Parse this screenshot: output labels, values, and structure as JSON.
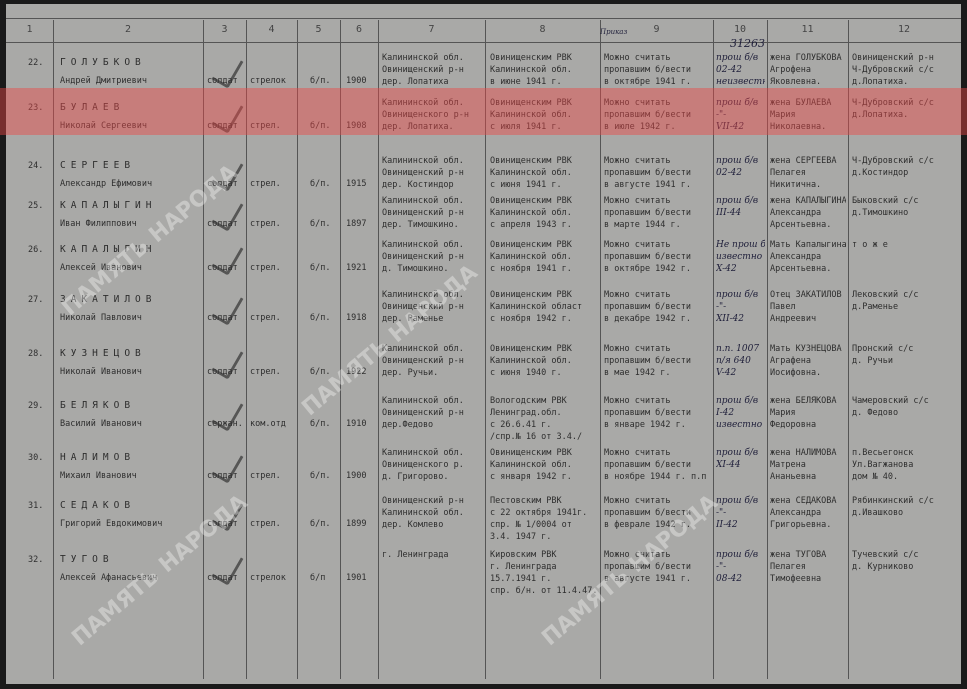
{
  "column_headers": [
    "1",
    "2",
    "3",
    "4",
    "5",
    "6",
    "7",
    "8",
    "9",
    "10",
    "11",
    "12"
  ],
  "top_annotation": "Приказ",
  "order_number": "31263",
  "highlight_color": "#eb4646",
  "watermark": "ПАМЯТЬ НАРОДА",
  "rows": [
    {
      "num": "22.",
      "surname": "ГОЛУБКОВ",
      "given": "Андрей Дмитриевич",
      "rank": "солдат",
      "position": "стрелок",
      "party": "б/п.",
      "year": "1900",
      "birthplace": [
        "Калининской обл.",
        "Овинищенский р-н",
        "дер. Лопатиха"
      ],
      "rvk": [
        "Овинищенским РВК",
        "Калининской обл.",
        "в июне 1941 г."
      ],
      "fate": [
        "Можно считать",
        "пропавшим б/вести",
        "в октябре 1941 г."
      ],
      "note": [
        "прош б/в",
        "02-42",
        "неизвестно"
      ],
      "relative": [
        "жена ГОЛУБКОВА",
        "Агрофена",
        "Яковлевна."
      ],
      "address": [
        "Овинищенский р-н",
        "Ч-Дубровский с/с",
        "д.Лопатиха."
      ]
    },
    {
      "num": "23.",
      "surname": "БУЛАЕВ",
      "given": "Николай Сергеевич",
      "rank": "солдат",
      "position": "стрел.",
      "party": "б/п.",
      "year": "1908",
      "birthplace": [
        "Калининской обл.",
        "Овинищенского р-н",
        "дер. Лопатиха."
      ],
      "rvk": [
        "Овинищенским РВК",
        "Калининской обл.",
        "с июля 1941 г."
      ],
      "fate": [
        "Можно считать",
        "пропавшим б/вести",
        "в июле 1942 г."
      ],
      "note": [
        "прош б/в",
        "-\"-",
        "VII-42"
      ],
      "relative": [
        "жена БУЛАЕВА",
        "Мария",
        "Николаевна."
      ],
      "address": [
        "Ч-Дубровский с/с",
        "д.Лопатиха."
      ]
    },
    {
      "num": "24.",
      "surname": "СЕРГЕЕВ",
      "given": "Александр Ефимович",
      "rank": "солдат",
      "position": "стрел.",
      "party": "б/п.",
      "year": "1915",
      "birthplace": [
        "Калининской обл.",
        "Овинищенский р-н",
        "дер. Костиндор"
      ],
      "rvk": [
        "Овинищенским РВК",
        "Калининской обл.",
        "с июня 1941 г."
      ],
      "fate": [
        "Можно считать",
        "пропавшим б/вести",
        "в августе 1941 г."
      ],
      "note": [
        "прош б/в",
        "02-42"
      ],
      "relative": [
        "жена СЕРГЕЕВА",
        "Пелагея",
        "Никитична."
      ],
      "address": [
        "Ч-Дубровский с/с",
        "д.Костиндор"
      ]
    },
    {
      "num": "25.",
      "surname": "КАПАЛЫГИН",
      "given": "Иван Филиппович",
      "rank": "солдат",
      "position": "стрел.",
      "party": "б/п.",
      "year": "1897",
      "birthplace": [
        "Калининской обл.",
        "Овинищенский р-н",
        "дер. Тимошкино."
      ],
      "rvk": [
        "Овинищенским РВК",
        "Калининской обл.",
        "с апреля 1943 г."
      ],
      "fate": [
        "Можно считать",
        "пропавшим б/вести",
        "в марте 1944 г."
      ],
      "note": [
        "прош б/в",
        "III-44"
      ],
      "relative": [
        "жена КАПАЛЫГИНА",
        "Александра",
        "Арсентьевна."
      ],
      "address": [
        "Быковский с/с",
        "д.Тимошкино"
      ]
    },
    {
      "num": "26.",
      "surname": "КАПАЛЫГИН",
      "given": "Алексей Иванович",
      "rank": "солдат",
      "position": "стрел.",
      "party": "б/п.",
      "year": "1921",
      "birthplace": [
        "Калининской обл.",
        "Овинищенский р-н",
        "д. Тимошкино."
      ],
      "rvk": [
        "Овинищенским РВК",
        "Калининской обл.",
        "с ноября 1941 г."
      ],
      "fate": [
        "Можно считать",
        "пропавшим б/вести",
        "в октябре 1942 г."
      ],
      "note": [
        "Не прош б/в",
        "известно",
        "X-42"
      ],
      "relative": [
        "Мать Капалыгина",
        "Александра",
        "Арсентьевна."
      ],
      "address": [
        "т о ж е"
      ]
    },
    {
      "num": "27.",
      "surname": "ЗАКАТИЛОВ",
      "given": "Николай Павлович",
      "rank": "солдат",
      "position": "стрел.",
      "party": "б/п.",
      "year": "1918",
      "birthplace": [
        "Калининской обл.",
        "Овинищенский р-н",
        "дер. Раменье"
      ],
      "rvk": [
        "Овинищенским РВК",
        "Калининской област",
        "с ноября 1942 г."
      ],
      "fate": [
        "Можно считать",
        "пропавшим б/вести",
        "в декабре 1942 г."
      ],
      "note": [
        "прош б/в",
        "-\"-",
        "XII-42"
      ],
      "relative": [
        "Отец ЗАКАТИЛОВ",
        "Павел",
        "Андреевич"
      ],
      "address": [
        "Лековский с/с",
        "д.Раменье"
      ]
    },
    {
      "num": "28.",
      "surname": "КУЗНЕЦОВ",
      "given": "Николай Иванович",
      "rank": "солдат",
      "position": "стрел.",
      "party": "б/п.",
      "year": "1922",
      "birthplace": [
        "Калининской обл.",
        "Овинищенский р-н",
        "дер. Ручьи."
      ],
      "rvk": [
        "Овинищенским РВК",
        "Калининской обл.",
        "с июня 1940 г."
      ],
      "fate": [
        "Можно считать",
        "пропавшим б/вести",
        "в мае 1942 г."
      ],
      "note": [
        "п.п. 1007",
        "п/я 640",
        "V-42"
      ],
      "relative": [
        "Мать КУЗНЕЦОВА",
        "Аграфена",
        "Иосифовна."
      ],
      "address": [
        "Пронский с/с",
        "д. Ручьи"
      ]
    },
    {
      "num": "29.",
      "surname": "БЕЛЯКОВ",
      "given": "Василий Иванович",
      "rank": "сержан.",
      "position": "ком.отд",
      "party": "б/п.",
      "year": "1910",
      "birthplace": [
        "Калининской обл.",
        "Овинищенский р-н",
        "дер.Федово"
      ],
      "rvk": [
        "Вологодским РВК",
        "Ленинград.обл.",
        "с 26.6.41 г.",
        "/спр.№ 16 от 3.4./"
      ],
      "fate": [
        "Можно считать",
        "пропавшим б/вести",
        "в январе 1942 г."
      ],
      "note": [
        "прош б/в",
        "I-42",
        "известно"
      ],
      "relative": [
        "жена БЕЛЯКОВА",
        "Мария",
        "Федоровна"
      ],
      "address": [
        "Чамеровский с/с",
        "д. Федово"
      ]
    },
    {
      "num": "30.",
      "surname": "НАЛИМОВ",
      "given": "Михаил Иванович",
      "rank": "солдат",
      "position": "стрел.",
      "party": "б/п.",
      "year": "1900",
      "birthplace": [
        "Калининской обл.",
        "Овинищенского р.",
        "д. Григорово."
      ],
      "rvk": [
        "Овинищенским РВК",
        "Калининской обл.",
        "с января 1942 г."
      ],
      "fate": [
        "Можно считать",
        "пропавшим б/вести",
        "в ноябре 1944 г. п.п 49904"
      ],
      "note": [
        "прош б/в",
        "XI-44"
      ],
      "relative": [
        "жена НАЛИМОВА",
        "Матрена",
        "Ананьевна"
      ],
      "address": [
        "п.Весьегонск",
        "Ул.Вагжанова",
        "дом № 40."
      ]
    },
    {
      "num": "31.",
      "surname": "СЕДАКОВ",
      "given": "Григорий Евдокимович",
      "rank": "солдат",
      "position": "стрел.",
      "party": "б/п.",
      "year": "1899",
      "birthplace": [
        "Овинищенский р-н",
        "Калининской обл.",
        "дер. Комлево"
      ],
      "rvk": [
        "Пестовским РВК",
        "с 22 октября 1941г.",
        "спр. № 1/0004 от",
        "3.4. 1947 г."
      ],
      "fate": [
        "Можно считать",
        "пропавшим б/вести",
        "в феврале 1942 г."
      ],
      "note": [
        "прош б/в",
        "-\"-",
        "II-42"
      ],
      "relative": [
        "жена СЕДАКОВА",
        "Александра",
        "Григорьевна."
      ],
      "address": [
        "Рябинкинский с/с",
        "д.Ивашково"
      ]
    },
    {
      "num": "32.",
      "surname": "ТУГОВ",
      "given": "Алексей Афанасьевич",
      "rank": "солдат",
      "position": "стрелок",
      "party": "б/п",
      "year": "1901",
      "birthplace": [
        "г. Ленинграда"
      ],
      "rvk": [
        "Кировским РВК",
        "г. Ленинграда",
        "15.7.1941 г.",
        "спр. б/н. от 11.4.47."
      ],
      "fate": [
        "Можно считать",
        "пропавшим б/вести",
        "в августе 1941 г."
      ],
      "note": [
        "прош б/в",
        "-\"-",
        "08-42"
      ],
      "relative": [
        "жена ТУГОВА",
        "Пелагея",
        "Тимофеевна"
      ],
      "address": [
        "Тучевский с/с",
        "д. Курниково"
      ]
    }
  ]
}
